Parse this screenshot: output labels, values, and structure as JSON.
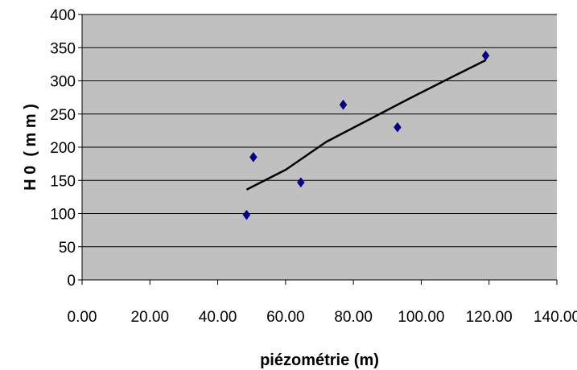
{
  "chart_data": {
    "type": "scatter",
    "title": "",
    "xlabel": "piézométrie (m)",
    "ylabel": "H 0  ( m m )",
    "xlim": [
      0,
      140
    ],
    "ylim": [
      0,
      400
    ],
    "x_ticks": [
      "0.00",
      "20.00",
      "40.00",
      "60.00",
      "80.00",
      "100.00",
      "120.00",
      "140.00"
    ],
    "y_ticks": [
      "0",
      "50",
      "100",
      "150",
      "200",
      "250",
      "300",
      "350",
      "400"
    ],
    "grid": "horizontal",
    "legend": "none",
    "series": [
      {
        "x": [
          48.5,
          50.5,
          64.5,
          77,
          93,
          119
        ],
        "y": [
          98,
          185,
          147,
          264,
          230,
          338
        ]
      }
    ],
    "trendline": {
      "x": [
        48.5,
        60,
        72,
        84,
        96,
        108,
        119
      ],
      "y": [
        136,
        166,
        208,
        240,
        272,
        303,
        331
      ]
    },
    "colors": {
      "plot_background": "#c0c0c0",
      "gridline": "#000000",
      "marker": "#000080",
      "trendline": "#000000"
    }
  }
}
